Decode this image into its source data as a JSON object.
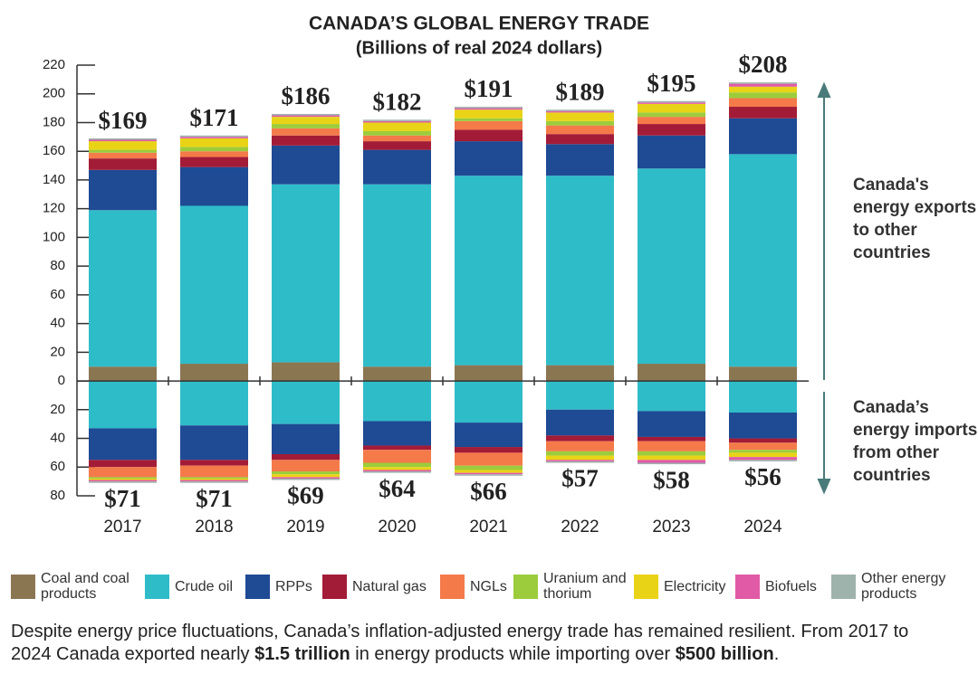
{
  "chart_data": {
    "type": "diverging_stacked_bar",
    "title": "CANADA’S GLOBAL ENERGY TRADE",
    "subtitle": "(Billions of real 2024 dollars)",
    "categories": [
      "2017",
      "2018",
      "2019",
      "2020",
      "2021",
      "2022",
      "2023",
      "2024"
    ],
    "series": [
      {
        "name": "Coal and coal products",
        "color": "#8b7652",
        "values": [
          10,
          12,
          13,
          10,
          11,
          11,
          12,
          10
        ],
        "imports": [
          0,
          0,
          0,
          0,
          0,
          0,
          0,
          0
        ]
      },
      {
        "name": "Crude oil",
        "color": "#2fbcc9",
        "values": [
          109,
          110,
          124,
          127,
          132,
          132,
          136,
          148
        ],
        "imports": [
          -33,
          -31,
          -30,
          -28,
          -29,
          -20,
          -21,
          -22
        ]
      },
      {
        "name": "RPPs",
        "color": "#1f4a94",
        "values": [
          28,
          27,
          27,
          24,
          24,
          22,
          23,
          25
        ],
        "imports": [
          -22,
          -24,
          -21,
          -17,
          -17,
          -18,
          -18,
          -18
        ]
      },
      {
        "name": "Natural gas",
        "color": "#a31c37",
        "values": [
          8,
          7,
          7,
          6,
          8,
          7,
          8,
          8
        ],
        "imports": [
          -5,
          -4,
          -4,
          -3,
          -4,
          -4,
          -3,
          -3
        ]
      },
      {
        "name": "NGLs",
        "color": "#f47a4a",
        "values": [
          4,
          4,
          5,
          4,
          6,
          6,
          5,
          6
        ],
        "imports": [
          -7,
          -8,
          -8,
          -9,
          -9,
          -7,
          -7,
          -5
        ]
      },
      {
        "name": "Uranium and thorium",
        "color": "#9ccc3c",
        "values": [
          2,
          3,
          3,
          3,
          2,
          3,
          3,
          4
        ],
        "imports": [
          -1,
          -1,
          -2,
          -3,
          -3,
          -3,
          -3,
          -2
        ]
      },
      {
        "name": "Electricity",
        "color": "#e9d316",
        "values": [
          6,
          6,
          5,
          6,
          6,
          6,
          6,
          4
        ],
        "imports": [
          -1,
          -1,
          -2,
          -2,
          -2,
          -3,
          -3,
          -3
        ]
      },
      {
        "name": "Biofuels",
        "color": "#e05aa6",
        "values": [
          1,
          1,
          1,
          1,
          1,
          1,
          1,
          2
        ],
        "imports": [
          -1,
          -1,
          -1,
          -1,
          -1,
          -1,
          -2,
          -2
        ]
      },
      {
        "name": "Other energy products",
        "color": "#9fb3ad",
        "values": [
          1,
          1,
          1,
          1,
          1,
          1,
          1,
          1
        ],
        "imports": [
          -1,
          -1,
          -1,
          -1,
          -1,
          -1,
          -1,
          -1
        ]
      }
    ],
    "export_totals": {
      "values": [
        169,
        171,
        186,
        182,
        191,
        189,
        195,
        208
      ],
      "value_labels": [
        "$169",
        "$171",
        "$186",
        "$182",
        "$191",
        "$189",
        "$195",
        "$208"
      ]
    },
    "import_totals": {
      "values": [
        71,
        71,
        69,
        64,
        66,
        57,
        58,
        56
      ],
      "value_labels": [
        "$71",
        "$71",
        "$69",
        "$64",
        "$66",
        "$57",
        "$58",
        "$56"
      ]
    },
    "ylim": [
      -80,
      220
    ],
    "yticks": [
      220,
      200,
      180,
      160,
      140,
      120,
      100,
      80,
      60,
      40,
      20,
      0,
      {
        "value": -20,
        "label": "20"
      },
      {
        "value": -40,
        "label": "40"
      },
      {
        "value": -60,
        "label": "60"
      },
      {
        "value": -80,
        "label": "80"
      }
    ],
    "annotations": [
      [
        "Canada's",
        "energy exports",
        "to other",
        "countries"
      ],
      [
        "Canada’s",
        "energy imports",
        "from other",
        "countries"
      ]
    ],
    "caption": [
      "Despite energy price fluctuations, Canada’s inflation-adjusted energy trade has remained resilient. From 2017 to 2024 Canada exported nearly ",
      "$1.5 trillion",
      " in energy products while importing over ",
      "$500 billion",
      "."
    ]
  }
}
